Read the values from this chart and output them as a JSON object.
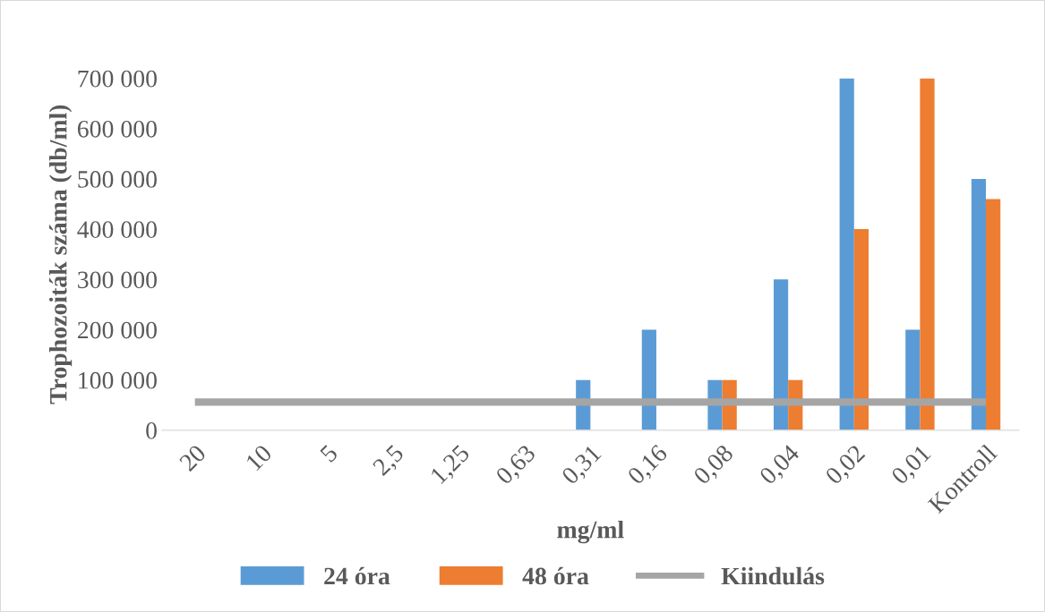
{
  "chart_data": {
    "type": "bar",
    "xlabel": "mg/ml",
    "ylabel": "Trophozoiták száma (db/ml)",
    "categories": [
      "20",
      "10",
      "5",
      "2,5",
      "1,25",
      "0,63",
      "0,31",
      "0,16",
      "0,08",
      "0,04",
      "0,02",
      "0,01",
      "Kontroll"
    ],
    "series": [
      {
        "name": "24 óra",
        "color": "#5b9bd5",
        "values": [
          0,
          0,
          0,
          0,
          0,
          0,
          100000,
          200000,
          100000,
          300000,
          700000,
          200000,
          500000
        ]
      },
      {
        "name": "48 óra",
        "color": "#ed7d31",
        "values": [
          0,
          0,
          0,
          0,
          0,
          0,
          0,
          0,
          100000,
          100000,
          400000,
          700000,
          460000
        ]
      },
      {
        "name": "Kiindulás",
        "type": "line",
        "color": "#a5a5a5",
        "values": [
          56000,
          56000,
          56000,
          56000,
          56000,
          56000,
          56000,
          56000,
          56000,
          56000,
          56000,
          56000,
          56000
        ]
      }
    ],
    "ylim": [
      0,
      700000
    ],
    "yticks": [
      0,
      {
        "value": 100000,
        "label": "100 000"
      },
      {
        "value": 200000,
        "label": "200 000"
      },
      {
        "value": 300000,
        "label": "300 000"
      },
      {
        "value": 400000,
        "label": "400 000"
      },
      {
        "value": 500000,
        "label": "500 000"
      },
      {
        "value": 600000,
        "label": "600 000"
      },
      {
        "value": 700000,
        "label": "700 000"
      }
    ],
    "legend": "bottom",
    "grid": false
  }
}
